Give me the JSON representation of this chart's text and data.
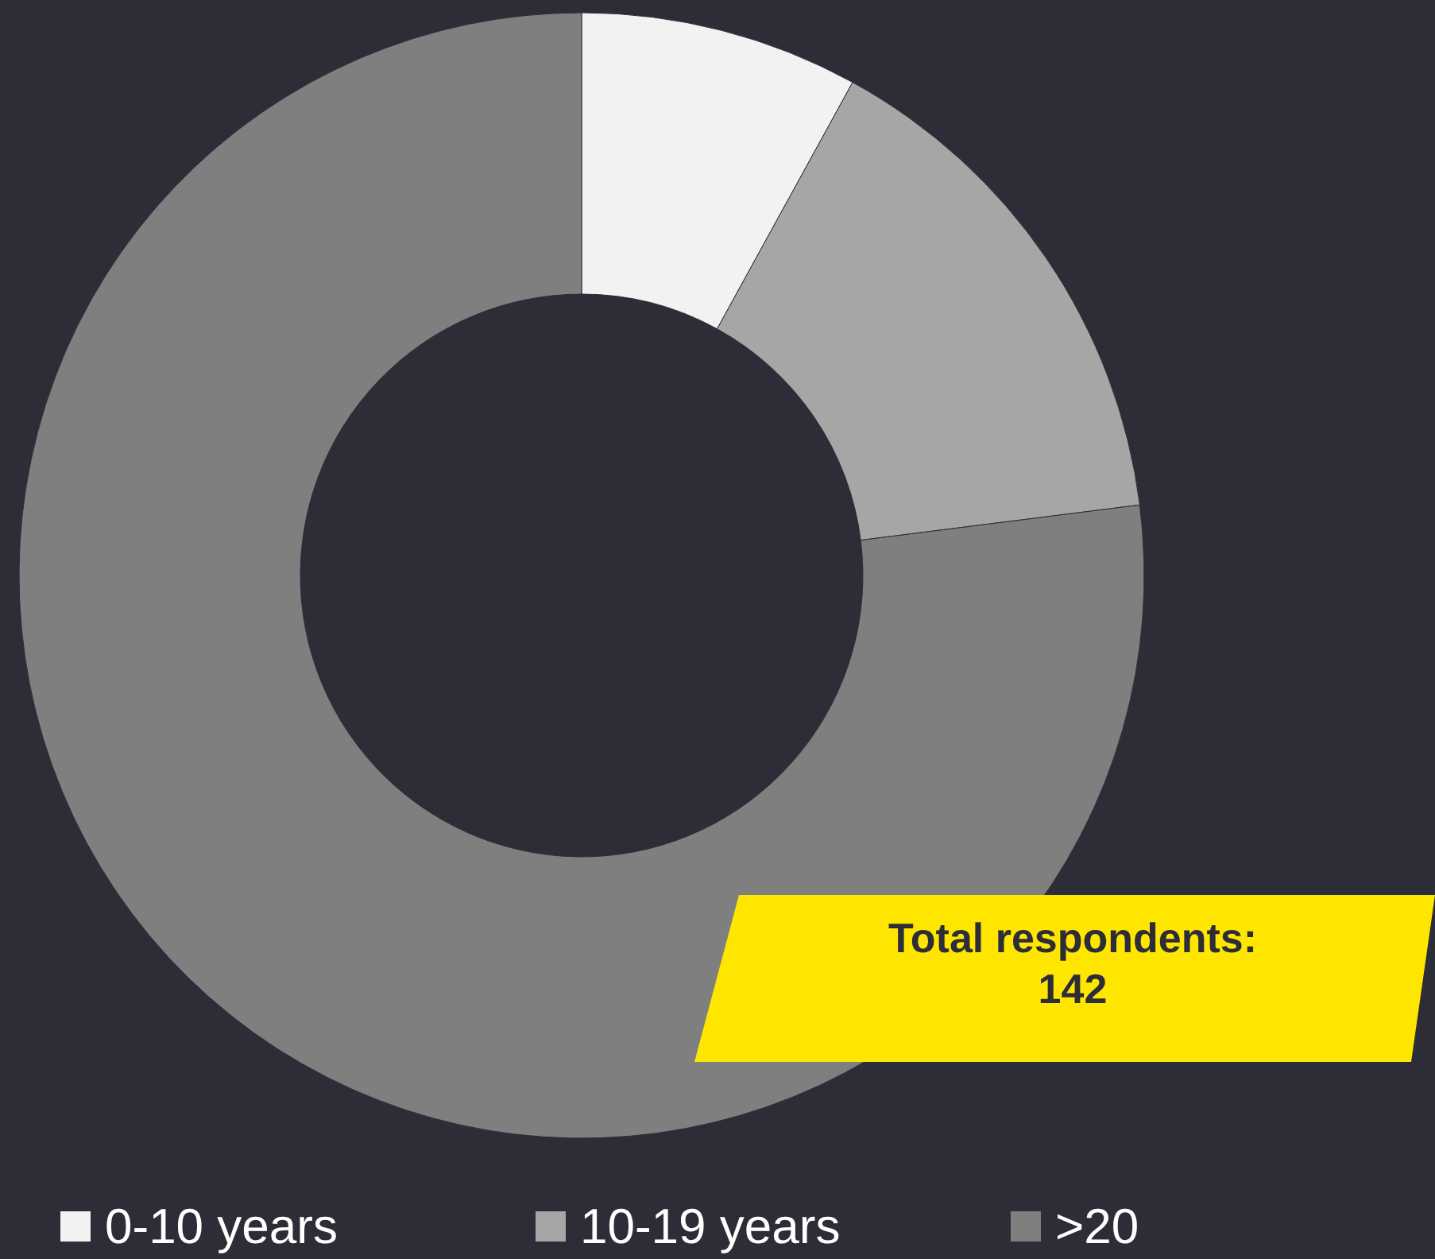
{
  "chart_data": {
    "type": "donut",
    "categories": [
      "0-10 years",
      "10-19 years",
      ">20"
    ],
    "values": [
      8,
      15,
      77
    ],
    "colors": [
      "#f2f2f2",
      "#a6a6a6",
      "#7f7f7f"
    ],
    "legend": "bottom",
    "annotations": [
      "Total respondents:\n142"
    ]
  }
}
